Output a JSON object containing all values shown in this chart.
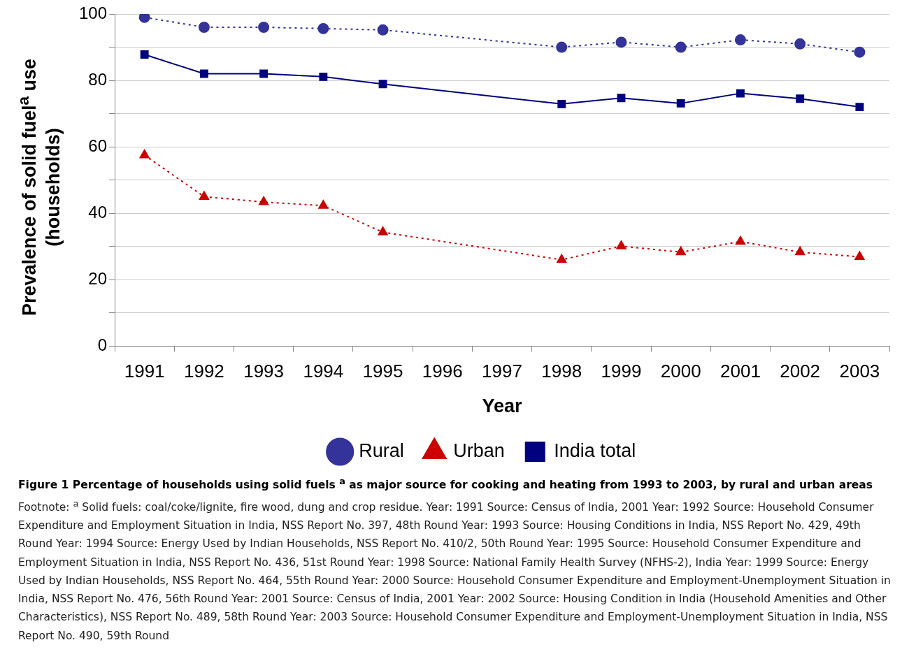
{
  "chart_data": {
    "type": "line",
    "title": "Figure 1 Percentage of households using solid fuels $^{a}$ as major source for cooking and heating from 1993 to 2003, by rural and urban areas",
    "xlabel": "Year",
    "ylabel": "Prevalence of solid fuel$^{a}$ use (households)",
    "annotations": [
      "Footnote: $^{a}$ Solid fuels: coal/coke/lignite, fire wood, dung and crop residue. Year: 1991 Source: Census of India, 2001 Year: 1992 Source: Household Consumer Expenditure and Employment Situation in India, NSS Report No. 397, 48th Round Year: 1993 Source: Housing Conditions in India, NSS Report No. 429, 49th Round Year: 1994 Source: Energy Used by Indian Households, NSS Report No. 410/2, 50th Round Year: 1995 Source: Household Consumer Expenditure and Employment Situation in India, NSS Report No. 436, 51st Round Year: 1998 Source: National Family Health Survey (NFHS-2), India Year: 1999 Source: Energy Used by Indian Households, NSS Report No. 464, 55th Round Year: 2000 Source: Household Consumer Expenditure and Employment-Unemployment Situation in India, NSS Report No. 476, 56th Round Year: 2001 Source: Census of India, 2001 Year: 2002 Source: Housing Condition in India (Household Amenities and Other Characteristics), NSS Report No. 489, 58th Round Year: 2003 Source: Household Consumer Expenditure and Employment-Unemployment Situation in India, NSS Report No. 490, 59th Round"
    ],
    "categories": [
      "1991",
      "1992",
      "1993",
      "1994",
      "1995",
      "1996",
      "1997",
      "1998",
      "1999",
      "2000",
      "2001",
      "2002",
      "2003"
    ],
    "series": [
      {
        "name": "Rural",
        "color": "#333399",
        "marker": "circle",
        "line_style": "dotted",
        "values": [
          99,
          96,
          96,
          95.6,
          95.2,
          null,
          null,
          90,
          91.5,
          90,
          92.2,
          91,
          88.5
        ]
      },
      {
        "name": "Urban",
        "color": "#cc0000",
        "marker": "triangle",
        "line_style": "dotted",
        "values": [
          57.5,
          45,
          43.4,
          42.3,
          34.3,
          null,
          null,
          26,
          30.1,
          28.3,
          31.5,
          28.3,
          26.9
        ]
      },
      {
        "name": "India total",
        "color": "#000080",
        "marker": "square",
        "line_style": "solid",
        "values": [
          87.8,
          82,
          82,
          81.1,
          78.9,
          null,
          null,
          72.9,
          74.7,
          73.1,
          76.1,
          74.5,
          72
        ]
      }
    ],
    "ylim": [
      0,
      100
    ],
    "yticks": [
      0,
      {
        "value": 10,
        "label": null
      },
      20,
      {
        "value": 30,
        "label": null
      },
      40,
      {
        "value": 50,
        "label": null
      },
      60,
      {
        "value": 70,
        "label": null
      },
      80,
      {
        "value": 90,
        "label": null
      },
      100
    ],
    "grid": "y",
    "legend": "bottom"
  }
}
